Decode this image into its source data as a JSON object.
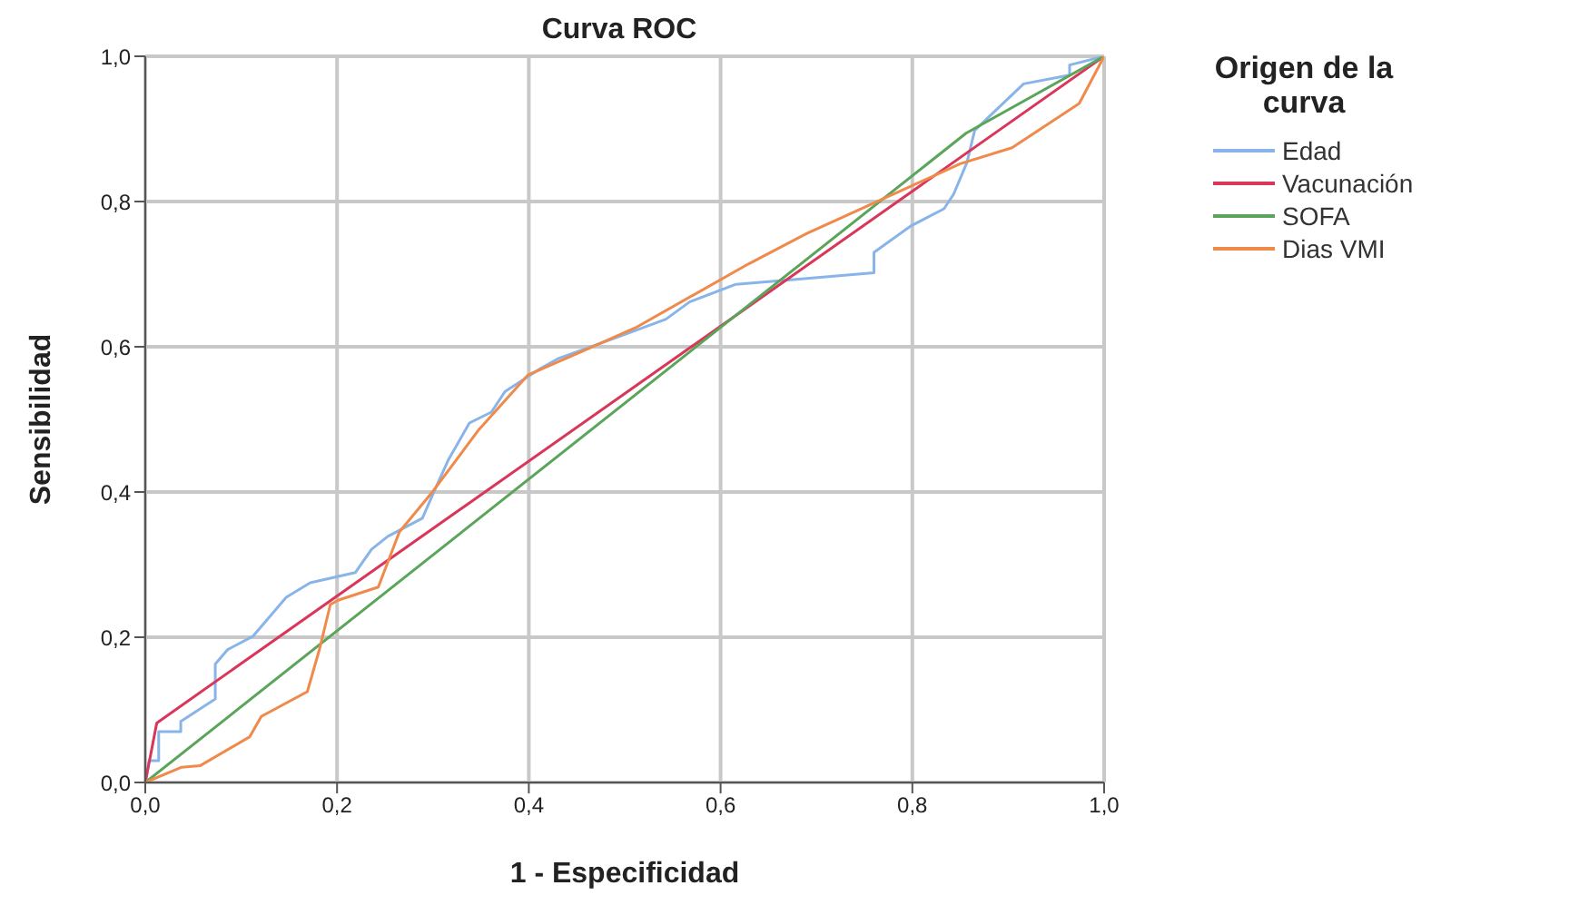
{
  "chart_data": {
    "type": "line",
    "title": "Curva ROC",
    "xlabel": "1 - Especificidad",
    "ylabel": "Sensibilidad",
    "legend_title": "Origen de la curva",
    "xlim": [
      0,
      1
    ],
    "ylim": [
      0,
      1
    ],
    "xticks": [
      {
        "value": 0,
        "label": "0,0"
      },
      {
        "value": 0.2,
        "label": "0,2"
      },
      {
        "value": 0.4,
        "label": "0,4"
      },
      {
        "value": 0.6,
        "label": "0,6"
      },
      {
        "value": 0.8,
        "label": "0,8"
      },
      {
        "value": 1,
        "label": "1,0"
      }
    ],
    "yticks": [
      {
        "value": 0,
        "label": "0,0"
      },
      {
        "value": 0.2,
        "label": "0,2"
      },
      {
        "value": 0.4,
        "label": "0,4"
      },
      {
        "value": 0.6,
        "label": "0,6"
      },
      {
        "value": 0.8,
        "label": "0,8"
      },
      {
        "value": 1,
        "label": "1,0"
      }
    ],
    "grid": true,
    "legend": "top right",
    "marker": "none",
    "line_style": "solid",
    "series": [
      {
        "name": "Edad",
        "color": "#88b4ea",
        "x": [
          0,
          0.004,
          0.014,
          0.014,
          0.037,
          0.037,
          0.073,
          0.073,
          0.086,
          0.112,
          0.125,
          0.147,
          0.172,
          0.219,
          0.236,
          0.253,
          0.289,
          0.303,
          0.316,
          0.338,
          0.361,
          0.375,
          0.412,
          0.431,
          0.49,
          0.543,
          0.568,
          0.616,
          0.69,
          0.76,
          0.76,
          0.798,
          0.833,
          0.843,
          0.857,
          0.865,
          0.916,
          0.964,
          0.964,
          1
        ],
        "values": [
          0,
          0.03,
          0.03,
          0.07,
          0.07,
          0.084,
          0.115,
          0.163,
          0.183,
          0.201,
          0.221,
          0.255,
          0.275,
          0.289,
          0.321,
          0.339,
          0.364,
          0.406,
          0.444,
          0.495,
          0.51,
          0.538,
          0.57,
          0.584,
          0.612,
          0.638,
          0.662,
          0.686,
          0.694,
          0.702,
          0.73,
          0.766,
          0.79,
          0.81,
          0.854,
          0.898,
          0.962,
          0.974,
          0.988,
          1
        ]
      },
      {
        "name": "Vacunación",
        "color": "#d9365a",
        "x": [
          0,
          0.012,
          1
        ],
        "values": [
          0,
          0.082,
          1
        ]
      },
      {
        "name": "SOFA",
        "color": "#5aa55a",
        "x": [
          0,
          0.856,
          1
        ],
        "values": [
          0,
          0.894,
          1
        ]
      },
      {
        "name": "Dias VMI",
        "color": "#f08a4b",
        "x": [
          0,
          0.038,
          0.057,
          0.109,
          0.121,
          0.169,
          0.182,
          0.193,
          0.201,
          0.243,
          0.265,
          0.3,
          0.348,
          0.399,
          0.456,
          0.511,
          0.629,
          0.69,
          0.85,
          0.904,
          0.974,
          1
        ],
        "values": [
          0,
          0.021,
          0.023,
          0.063,
          0.091,
          0.125,
          0.185,
          0.245,
          0.251,
          0.269,
          0.345,
          0.401,
          0.486,
          0.561,
          0.594,
          0.626,
          0.714,
          0.756,
          0.852,
          0.874,
          0.935,
          1
        ]
      }
    ]
  }
}
